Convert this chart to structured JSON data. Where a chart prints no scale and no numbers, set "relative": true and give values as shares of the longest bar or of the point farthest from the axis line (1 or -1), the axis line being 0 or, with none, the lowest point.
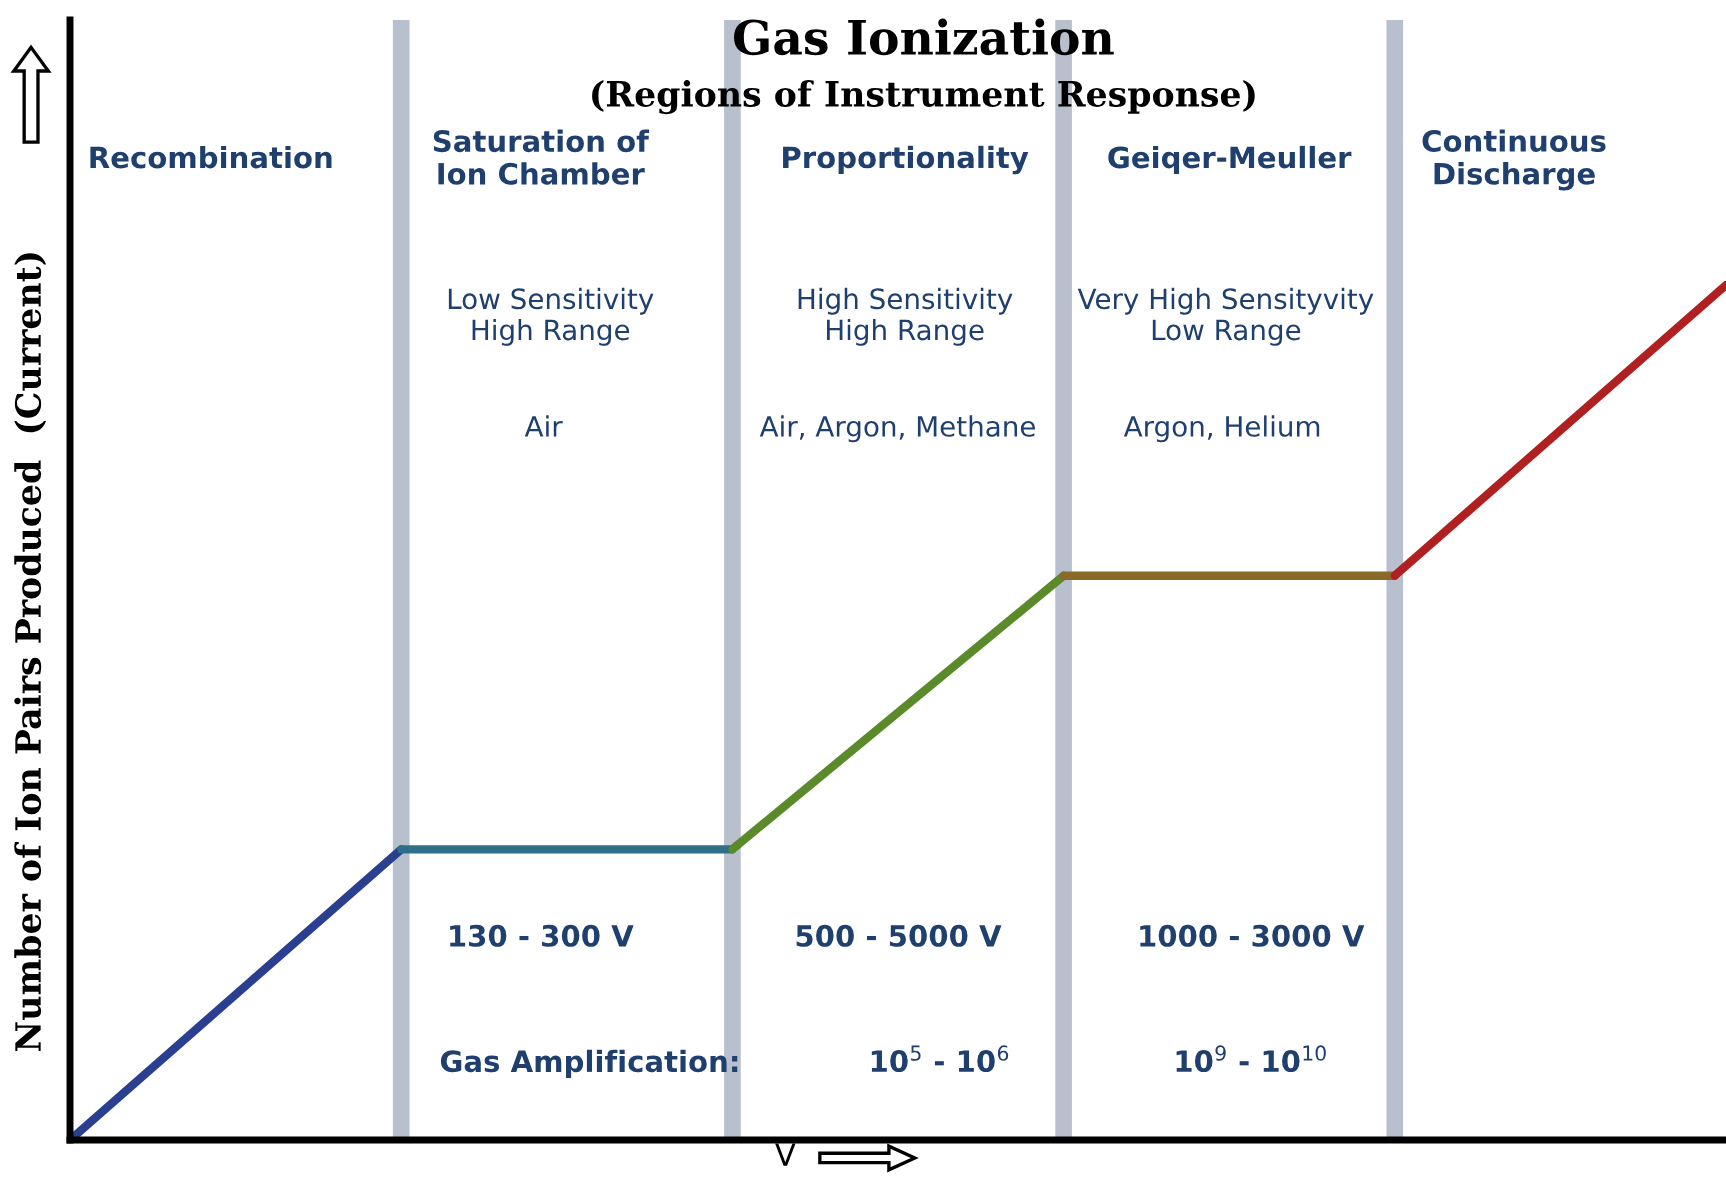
{
  "chart_data": {
    "type": "line",
    "relative": true,
    "title": "Gas Ionization",
    "subtitle": "(Regions of Instrument Response)",
    "xlabel": "V",
    "ylabel": "Number of Ion Pairs Produced  (Current)",
    "grid": "x",
    "categories": [
      null,
      null,
      null,
      null,
      null,
      null
    ],
    "series": [
      {
        "color": "#2a3f8f",
        "values": [
          0,
          0.34,
          null,
          null,
          null,
          null
        ]
      },
      {
        "color": "#2f6f8a",
        "values": [
          null,
          0.34,
          0.34,
          null,
          null,
          null
        ]
      },
      {
        "color": "#5a8a2a",
        "values": [
          null,
          null,
          0.34,
          0.66,
          null,
          null
        ]
      },
      {
        "color": "#8a6a2a",
        "values": [
          null,
          null,
          null,
          0.66,
          0.66,
          null
        ]
      },
      {
        "color": "#b02020",
        "values": [
          null,
          null,
          null,
          null,
          0.66,
          1
        ]
      }
    ],
    "annotations": [
      "Recombination",
      "Saturation of\nIon Chamber",
      "Proportionality",
      "Geiqer-Meuller",
      "Continuous\nDischarge",
      "Low Sensitivity\nHigh Range",
      "High Sensitivity\nHigh Range",
      "Very High Sensityvity\nLow Range",
      "Air",
      "Air, Argon, Methane",
      "Argon, Helium",
      "130 - 300 V",
      "500 - 5000 V",
      "1000 - 3000 V",
      "Gas Amplification:",
      "10$^{5}$ - 10$^{6}$",
      "10$^{9}$ - 10$^{10}$"
    ]
  }
}
